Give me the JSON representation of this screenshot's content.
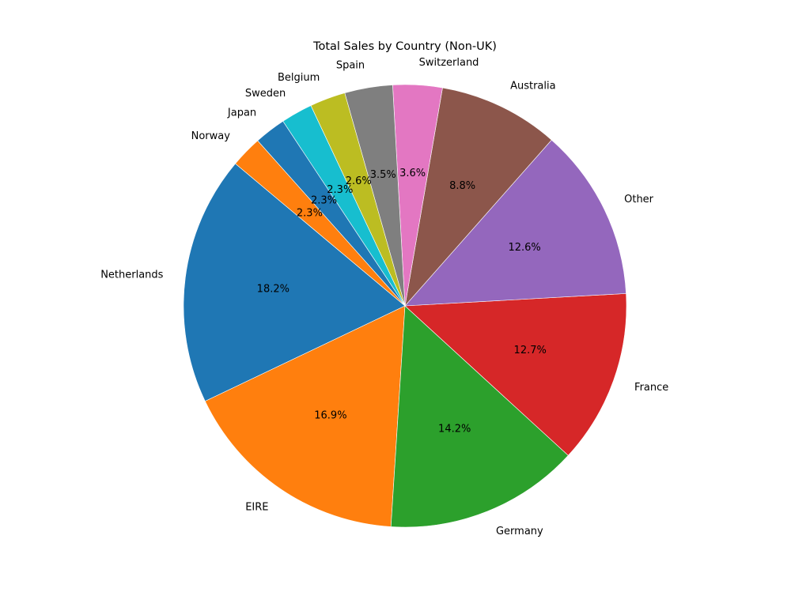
{
  "chart_data": {
    "type": "pie",
    "title": "Total Sales by Country (Non-UK)",
    "start_angle_deg": 140,
    "direction": "counterclockwise",
    "slices": [
      {
        "label": "Netherlands",
        "value": 18.2,
        "pct_label": "18.2%",
        "color": "#1f77b4"
      },
      {
        "label": "EIRE",
        "value": 16.9,
        "pct_label": "16.9%",
        "color": "#ff7f0e"
      },
      {
        "label": "Germany",
        "value": 14.2,
        "pct_label": "14.2%",
        "color": "#2ca02c"
      },
      {
        "label": "France",
        "value": 12.7,
        "pct_label": "12.7%",
        "color": "#d62728"
      },
      {
        "label": "Other",
        "value": 12.6,
        "pct_label": "12.6%",
        "color": "#9467bd"
      },
      {
        "label": "Australia",
        "value": 8.8,
        "pct_label": "8.8%",
        "color": "#8c564b"
      },
      {
        "label": "Switzerland",
        "value": 3.6,
        "pct_label": "3.6%",
        "color": "#e377c2"
      },
      {
        "label": "Spain",
        "value": 3.5,
        "pct_label": "3.5%",
        "color": "#7f7f7f"
      },
      {
        "label": "Belgium",
        "value": 2.6,
        "pct_label": "2.6%",
        "color": "#bcbd22"
      },
      {
        "label": "Sweden",
        "value": 2.3,
        "pct_label": "2.3%",
        "color": "#17becf"
      },
      {
        "label": "Japan",
        "value": 2.3,
        "pct_label": "2.3%",
        "color": "#1f77b4"
      },
      {
        "label": "Norway",
        "value": 2.3,
        "pct_label": "2.3%",
        "color": "#ff7f0e"
      }
    ]
  }
}
